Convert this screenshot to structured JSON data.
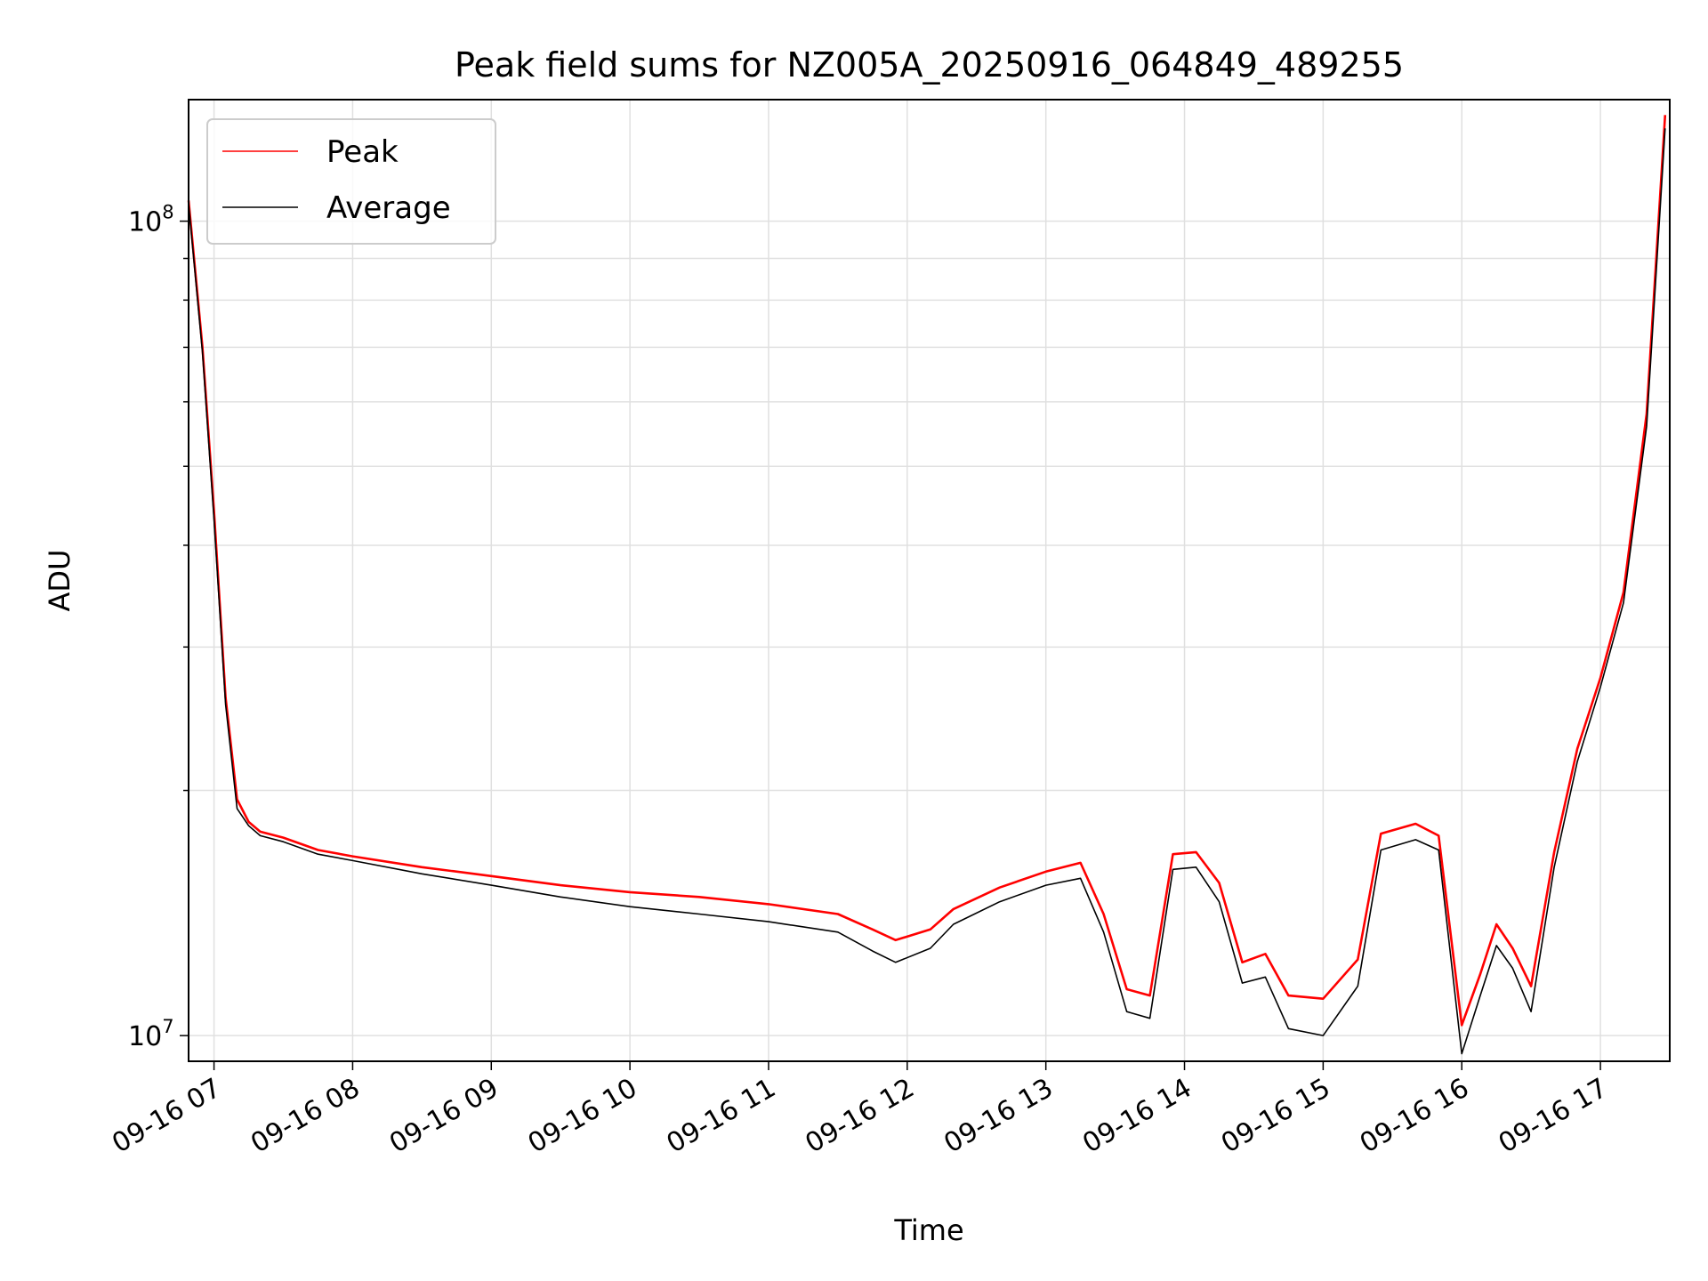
{
  "chart_data": {
    "type": "line",
    "title": "Peak field sums for NZ005A_20250916_064849_489255",
    "xlabel": "Time",
    "ylabel": "ADU",
    "y_scale": "log",
    "ylim": [
      9300000,
      141000000
    ],
    "xlim": [
      "2025-09-16 06:49",
      "2025-09-16 17:30"
    ],
    "x_ticks": [
      "09-16 07",
      "09-16 08",
      "09-16 09",
      "09-16 10",
      "09-16 11",
      "09-16 12",
      "09-16 13",
      "09-16 14",
      "09-16 15",
      "09-16 16",
      "09-16 17"
    ],
    "y_ticks": [
      {
        "base": "10",
        "exp": "7"
      },
      {
        "base": "10",
        "exp": "8"
      }
    ],
    "grid": true,
    "legend_position": "upper left",
    "series": [
      {
        "name": "Peak",
        "color": "#ff0000",
        "x": [
          "2025-09-16 06:49",
          "2025-09-16 06:55",
          "2025-09-16 07:00",
          "2025-09-16 07:05",
          "2025-09-16 07:10",
          "2025-09-16 07:15",
          "2025-09-16 07:20",
          "2025-09-16 07:30",
          "2025-09-16 07:45",
          "2025-09-16 08:00",
          "2025-09-16 08:30",
          "2025-09-16 09:00",
          "2025-09-16 09:30",
          "2025-09-16 10:00",
          "2025-09-16 10:30",
          "2025-09-16 11:00",
          "2025-09-16 11:30",
          "2025-09-16 11:45",
          "2025-09-16 11:55",
          "2025-09-16 12:10",
          "2025-09-16 12:20",
          "2025-09-16 12:40",
          "2025-09-16 13:00",
          "2025-09-16 13:15",
          "2025-09-16 13:25",
          "2025-09-16 13:35",
          "2025-09-16 13:45",
          "2025-09-16 13:55",
          "2025-09-16 14:05",
          "2025-09-16 14:15",
          "2025-09-16 14:25",
          "2025-09-16 14:35",
          "2025-09-16 14:45",
          "2025-09-16 15:00",
          "2025-09-16 15:15",
          "2025-09-16 15:25",
          "2025-09-16 15:40",
          "2025-09-16 15:50",
          "2025-09-16 16:00",
          "2025-09-16 16:08",
          "2025-09-16 16:15",
          "2025-09-16 16:22",
          "2025-09-16 16:30",
          "2025-09-16 16:40",
          "2025-09-16 16:50",
          "2025-09-16 17:00",
          "2025-09-16 17:10",
          "2025-09-16 17:20",
          "2025-09-16 17:28"
        ],
        "y": [
          106000000,
          70000000,
          44000000,
          26000000,
          19500000,
          18300000,
          17800000,
          17500000,
          16900000,
          16600000,
          16100000,
          15700000,
          15300000,
          15000000,
          14800000,
          14500000,
          14100000,
          13500000,
          13100000,
          13500000,
          14300000,
          15200000,
          15900000,
          16300000,
          14100000,
          11400000,
          11200000,
          16700000,
          16800000,
          15400000,
          12300000,
          12600000,
          11200000,
          11100000,
          12400000,
          17700000,
          18200000,
          17600000,
          10300000,
          11900000,
          13700000,
          12800000,
          11500000,
          16800000,
          22500000,
          27500000,
          35000000,
          58000000,
          135000000
        ]
      },
      {
        "name": "Average",
        "color": "#000000",
        "x": [
          "2025-09-16 06:49",
          "2025-09-16 06:55",
          "2025-09-16 07:00",
          "2025-09-16 07:05",
          "2025-09-16 07:10",
          "2025-09-16 07:15",
          "2025-09-16 07:20",
          "2025-09-16 07:30",
          "2025-09-16 07:45",
          "2025-09-16 08:00",
          "2025-09-16 08:30",
          "2025-09-16 09:00",
          "2025-09-16 09:30",
          "2025-09-16 10:00",
          "2025-09-16 10:30",
          "2025-09-16 11:00",
          "2025-09-16 11:30",
          "2025-09-16 11:45",
          "2025-09-16 11:55",
          "2025-09-16 12:10",
          "2025-09-16 12:20",
          "2025-09-16 12:40",
          "2025-09-16 13:00",
          "2025-09-16 13:15",
          "2025-09-16 13:25",
          "2025-09-16 13:35",
          "2025-09-16 13:45",
          "2025-09-16 13:55",
          "2025-09-16 14:05",
          "2025-09-16 14:15",
          "2025-09-16 14:25",
          "2025-09-16 14:35",
          "2025-09-16 14:45",
          "2025-09-16 15:00",
          "2025-09-16 15:15",
          "2025-09-16 15:25",
          "2025-09-16 15:40",
          "2025-09-16 15:50",
          "2025-09-16 16:00",
          "2025-09-16 16:08",
          "2025-09-16 16:15",
          "2025-09-16 16:22",
          "2025-09-16 16:30",
          "2025-09-16 16:40",
          "2025-09-16 16:50",
          "2025-09-16 17:00",
          "2025-09-16 17:10",
          "2025-09-16 17:20",
          "2025-09-16 17:28"
        ],
        "y": [
          105000000,
          69000000,
          43000000,
          25500000,
          19000000,
          18100000,
          17600000,
          17300000,
          16700000,
          16400000,
          15800000,
          15300000,
          14800000,
          14400000,
          14100000,
          13800000,
          13400000,
          12700000,
          12300000,
          12800000,
          13700000,
          14600000,
          15300000,
          15600000,
          13400000,
          10700000,
          10500000,
          16000000,
          16100000,
          14600000,
          11600000,
          11800000,
          10200000,
          10000000,
          11500000,
          16900000,
          17400000,
          16900000,
          9500000,
          11200000,
          12900000,
          12100000,
          10700000,
          16100000,
          21700000,
          26800000,
          34000000,
          56000000,
          130000000
        ]
      }
    ]
  }
}
